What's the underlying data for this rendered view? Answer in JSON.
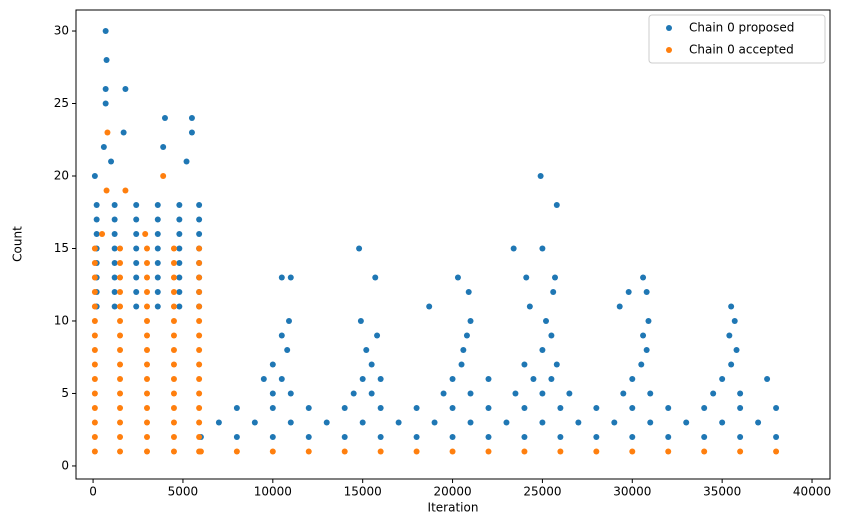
{
  "chart_data": {
    "type": "scatter",
    "x_label": "Iteration",
    "y_label": "Count",
    "xlim": [
      -950,
      41000
    ],
    "ylim": [
      -0.9,
      31.45
    ],
    "xticks": [
      0,
      5000,
      10000,
      15000,
      20000,
      25000,
      30000,
      35000,
      40000
    ],
    "yticks": [
      0,
      5,
      10,
      15,
      20,
      25,
      30
    ],
    "grid": false,
    "legend": "upper right",
    "series": [
      {
        "name": "Chain 0 proposed",
        "color": "#1f77b4",
        "x": [
          200,
          1200,
          2400,
          3600,
          4800,
          5900,
          200,
          1200,
          2400,
          3600,
          4800,
          5900,
          200,
          1200,
          2400,
          3600,
          4800,
          5900,
          200,
          1200,
          2400,
          3600,
          4800,
          5900,
          200,
          1200,
          2400,
          3600,
          4800,
          5900,
          200,
          1200,
          2400,
          3600,
          4800,
          5900,
          200,
          1200,
          2400,
          3600,
          4800,
          5900,
          200,
          1200,
          2400,
          3600,
          4800,
          5900,
          700,
          750,
          700,
          1800,
          700,
          4000,
          5500,
          1700,
          5500,
          600,
          3900,
          1000,
          5200,
          100,
          6000,
          8000,
          10000,
          12000,
          14000,
          16000,
          18000,
          20000,
          22000,
          24000,
          26000,
          28000,
          30000,
          32000,
          34000,
          36000,
          38000,
          7000,
          9000,
          11000,
          13000,
          15000,
          17000,
          19000,
          21000,
          23000,
          25000,
          27000,
          29000,
          31000,
          33000,
          35000,
          37000,
          8000,
          10000,
          12000,
          14000,
          16000,
          18000,
          20000,
          22000,
          24000,
          26000,
          28000,
          30000,
          32000,
          34000,
          36000,
          38000,
          10000,
          11000,
          14500,
          15500,
          19500,
          21000,
          23500,
          25000,
          26500,
          29500,
          31000,
          34500,
          36000,
          9500,
          10500,
          15000,
          16000,
          20000,
          22000,
          24500,
          25500,
          30000,
          35000,
          37500,
          10000,
          15500,
          20500,
          24000,
          25800,
          30500,
          35500,
          10800,
          15200,
          20600,
          25000,
          30800,
          35800,
          10500,
          15800,
          20800,
          25500,
          30600,
          35400,
          10900,
          14900,
          21000,
          25200,
          30900,
          35700,
          18700,
          24300,
          29300,
          35500,
          20900,
          25600,
          29800,
          30800,
          10500,
          11000,
          15700,
          20300,
          24100,
          25700,
          30600,
          14800,
          23400,
          25000,
          25800,
          24900
        ],
        "values": [
          11,
          11,
          11,
          11,
          11,
          11,
          12,
          12,
          12,
          12,
          12,
          12,
          13,
          13,
          13,
          13,
          13,
          13,
          14,
          14,
          14,
          14,
          14,
          14,
          15,
          15,
          15,
          15,
          15,
          15,
          16,
          16,
          16,
          16,
          16,
          16,
          17,
          17,
          17,
          17,
          17,
          17,
          18,
          18,
          18,
          18,
          18,
          18,
          30,
          28,
          26,
          26,
          25,
          24,
          24,
          23,
          23,
          22,
          22,
          21,
          21,
          20,
          2,
          2,
          2,
          2,
          2,
          2,
          2,
          2,
          2,
          2,
          2,
          2,
          2,
          2,
          2,
          2,
          2,
          3,
          3,
          3,
          3,
          3,
          3,
          3,
          3,
          3,
          3,
          3,
          3,
          3,
          3,
          3,
          3,
          4,
          4,
          4,
          4,
          4,
          4,
          4,
          4,
          4,
          4,
          4,
          4,
          4,
          4,
          4,
          4,
          5,
          5,
          5,
          5,
          5,
          5,
          5,
          5,
          5,
          5,
          5,
          5,
          5,
          6,
          6,
          6,
          6,
          6,
          6,
          6,
          6,
          6,
          6,
          6,
          7,
          7,
          7,
          7,
          7,
          7,
          7,
          8,
          8,
          8,
          8,
          8,
          8,
          9,
          9,
          9,
          9,
          9,
          9,
          10,
          10,
          10,
          10,
          10,
          10,
          11,
          11,
          11,
          11,
          12,
          12,
          12,
          12,
          13,
          13,
          13,
          13,
          13,
          13,
          13,
          15,
          15,
          15,
          18,
          20
        ]
      },
      {
        "name": "Chain 0 accepted",
        "color": "#ff7f0e",
        "x": [
          100,
          1500,
          3000,
          4500,
          5900,
          100,
          1500,
          3000,
          4500,
          5900,
          100,
          1500,
          3000,
          4500,
          5900,
          100,
          1500,
          3000,
          4500,
          5900,
          100,
          1500,
          3000,
          4500,
          5900,
          100,
          1500,
          3000,
          4500,
          5900,
          100,
          1500,
          3000,
          4500,
          5900,
          100,
          1500,
          3000,
          4500,
          5900,
          100,
          1500,
          3000,
          4500,
          5900,
          100,
          1500,
          3000,
          4500,
          5900,
          100,
          1500,
          3000,
          4500,
          5900,
          100,
          1500,
          3000,
          4500,
          5900,
          100,
          1500,
          3000,
          4500,
          5900,
          100,
          1500,
          3000,
          4500,
          5900,
          100,
          1500,
          3000,
          4500,
          5900,
          800,
          750,
          3900,
          1800,
          500,
          2900,
          6000,
          8000,
          10000,
          12000,
          14000,
          16000,
          18000,
          20000,
          22000,
          24000,
          26000,
          28000,
          30000,
          32000,
          34000,
          36000,
          38000
        ],
        "values": [
          1,
          1,
          1,
          1,
          1,
          2,
          2,
          2,
          2,
          2,
          3,
          3,
          3,
          3,
          3,
          4,
          4,
          4,
          4,
          4,
          5,
          5,
          5,
          5,
          5,
          6,
          6,
          6,
          6,
          6,
          7,
          7,
          7,
          7,
          7,
          8,
          8,
          8,
          8,
          8,
          9,
          9,
          9,
          9,
          9,
          10,
          10,
          10,
          10,
          10,
          11,
          11,
          11,
          11,
          11,
          12,
          12,
          12,
          12,
          12,
          13,
          13,
          13,
          13,
          13,
          14,
          14,
          14,
          14,
          14,
          15,
          15,
          15,
          15,
          15,
          23,
          19,
          20,
          19,
          16,
          16,
          1,
          1,
          1,
          1,
          1,
          1,
          1,
          1,
          1,
          1,
          1,
          1,
          1,
          1,
          1,
          1,
          1
        ]
      }
    ]
  }
}
